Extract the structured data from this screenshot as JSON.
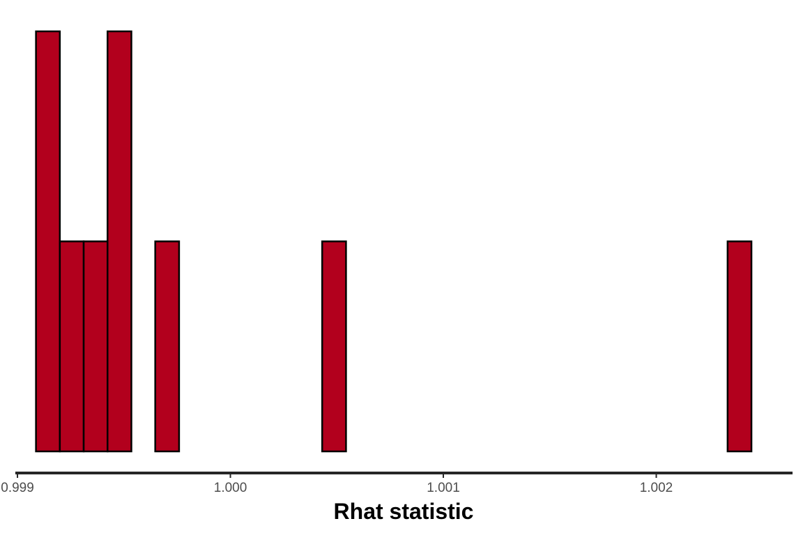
{
  "chart_data": {
    "type": "bar",
    "subtype": "histogram",
    "xlabel": "Rhat statistic",
    "ylabel": "",
    "xlim": [
      0.99899,
      1.00264
    ],
    "y_axis_shown": false,
    "grid": false,
    "legend": "none",
    "x_ticks": [
      {
        "value": 0.999,
        "label": "0.999"
      },
      {
        "value": 1.0,
        "label": "1.000"
      },
      {
        "value": 1.001,
        "label": "1.001"
      },
      {
        "value": 1.002,
        "label": "1.002"
      }
    ],
    "bin_width": 0.000112,
    "first_bin_start": 0.999087,
    "counts": [
      2,
      1,
      1,
      2,
      0,
      1,
      0,
      0,
      0,
      0,
      0,
      0,
      1,
      0,
      0,
      0,
      0,
      0,
      0,
      0,
      0,
      0,
      0,
      0,
      0,
      0,
      0,
      0,
      0,
      1
    ],
    "bar_fill": "#b2001d",
    "bar_outline": "#000000",
    "axis_line_color": "#262626"
  }
}
